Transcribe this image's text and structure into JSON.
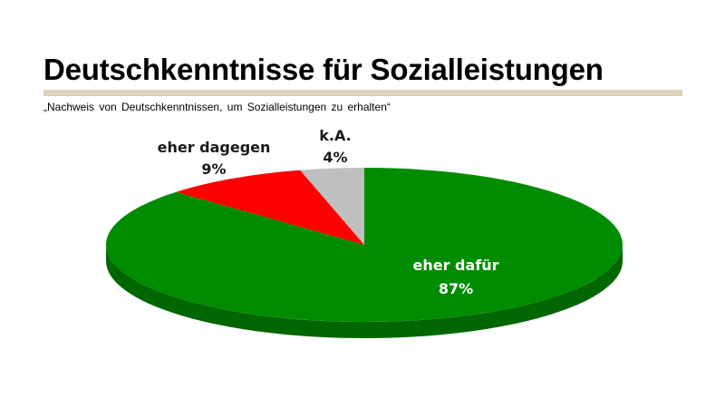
{
  "title": "Deutschkenntnisse für Sozialleistungen",
  "subtitle": "„Nachweis von Deutschkenntnissen, um Sozialleistungen zu erhalten“",
  "colors": {
    "rule": "#DDD2BA",
    "green": "#008C00",
    "green_side": "#006600",
    "red": "#FF0000",
    "red_side": "#B00000",
    "gray": "#BFBFBF",
    "gray_side": "#8C8C8C",
    "label_dark": "#1a1a1a",
    "label_light": "#ffffff"
  },
  "chart_data": {
    "type": "pie",
    "title": "Deutschkenntnisse für Sozialleistungen",
    "subtitle": "„Nachweis von Deutschkenntnissen, um Sozialleistungen zu erhalten“",
    "unit": "%",
    "slices": [
      {
        "name": "eher dafür",
        "value": 87,
        "label": "87%",
        "color": "#008C00"
      },
      {
        "name": "eher dagegen",
        "value": 9,
        "label": "9%",
        "color": "#FF0000"
      },
      {
        "name": "k.A.",
        "value": 4,
        "label": "4%",
        "color": "#BFBFBF"
      }
    ],
    "start": "top",
    "direction": "clockwise",
    "style": "3d-tilted"
  }
}
